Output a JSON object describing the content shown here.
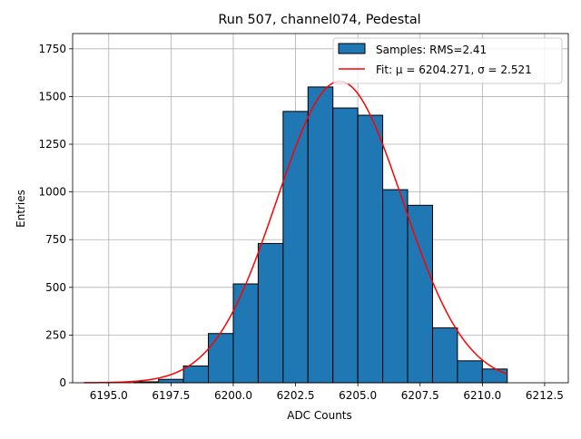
{
  "chart_data": {
    "type": "bar",
    "title": "Run 507, channel074, Pedestal",
    "xlabel": "ADC Counts",
    "ylabel": "Entries",
    "xlim": [
      6193.55,
      6213.45
    ],
    "ylim": [
      0,
      1830
    ],
    "x_ticks": [
      {
        "value": 6195.0,
        "label": "6195.0"
      },
      {
        "value": 6197.5,
        "label": "6197.5"
      },
      {
        "value": 6200.0,
        "label": "6200.0"
      },
      {
        "value": 6202.5,
        "label": "6202.5"
      },
      {
        "value": 6205.0,
        "label": "6205.0"
      },
      {
        "value": 6207.5,
        "label": "6207.5"
      },
      {
        "value": 6210.0,
        "label": "6210.0"
      },
      {
        "value": 6212.5,
        "label": "6212.5"
      }
    ],
    "y_ticks": [
      {
        "value": 0,
        "label": "0"
      },
      {
        "value": 250,
        "label": "250"
      },
      {
        "value": 500,
        "label": "500"
      },
      {
        "value": 750,
        "label": "750"
      },
      {
        "value": 1000,
        "label": "1000"
      },
      {
        "value": 1250,
        "label": "1250"
      },
      {
        "value": 1500,
        "label": "1500"
      },
      {
        "value": 1750,
        "label": "1750"
      }
    ],
    "grid": true,
    "legend_position": "top-right",
    "bar_color": "#1f77b4",
    "fit_color": "#ff0000",
    "histogram": {
      "name": "Samples: RMS=2.41",
      "bins": [
        {
          "left": 6196,
          "right": 6197,
          "value": 5
        },
        {
          "left": 6197,
          "right": 6198,
          "value": 18
        },
        {
          "left": 6198,
          "right": 6199,
          "value": 88
        },
        {
          "left": 6199,
          "right": 6200,
          "value": 258
        },
        {
          "left": 6200,
          "right": 6201,
          "value": 518
        },
        {
          "left": 6201,
          "right": 6202,
          "value": 730
        },
        {
          "left": 6202,
          "right": 6203,
          "value": 1422
        },
        {
          "left": 6203,
          "right": 6204,
          "value": 1550
        },
        {
          "left": 6204,
          "right": 6205,
          "value": 1440
        },
        {
          "left": 6205,
          "right": 6206,
          "value": 1402
        },
        {
          "left": 6206,
          "right": 6207,
          "value": 1012
        },
        {
          "left": 6207,
          "right": 6208,
          "value": 930
        },
        {
          "left": 6208,
          "right": 6209,
          "value": 288
        },
        {
          "left": 6209,
          "right": 6210,
          "value": 115
        },
        {
          "left": 6210,
          "right": 6211,
          "value": 72
        }
      ]
    },
    "fit": {
      "name": "Fit: μ = 6204.271, σ = 2.521",
      "mu": 6204.271,
      "sigma": 2.521,
      "amplitude": 1580,
      "x_range": [
        6194,
        6211
      ]
    }
  }
}
